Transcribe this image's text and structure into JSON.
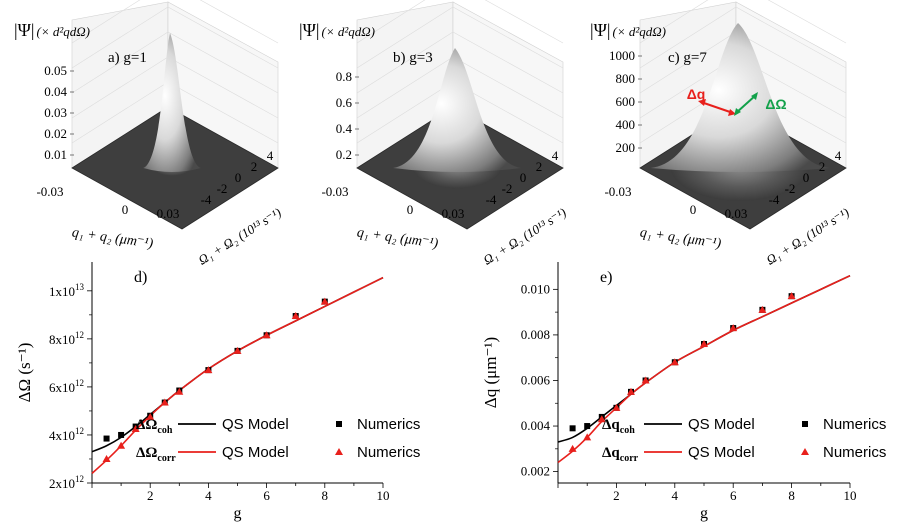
{
  "chart_data": [
    {
      "type": "surface3d",
      "panel_label": "a) g=1",
      "zlabel_main": "|Ψ|",
      "zlabel_unit": "(× d²qdΩ)",
      "zticks": [
        "0.01",
        "0.02",
        "0.03",
        "0.04",
        "0.05"
      ],
      "x_label": "q₁ + q₂ (μm⁻¹)",
      "x_ticks": [
        "-0.03",
        "0",
        "0.03"
      ],
      "y_label": "Ω₁ + Ω₂ (10¹³ s⁻¹)",
      "y_ticks": [
        "4",
        "2",
        "0",
        "-2",
        "-4"
      ],
      "peak": 0.055
    },
    {
      "type": "surface3d",
      "panel_label": "b) g=3",
      "zlabel_main": "|Ψ|",
      "zlabel_unit": "(× d²qdΩ)",
      "zticks": [
        "0.2",
        "0.4",
        "0.6",
        "0.8"
      ],
      "x_label": "q₁ + q₂ (μm⁻¹)",
      "x_ticks": [
        "-0.03",
        "0",
        "0.03"
      ],
      "y_label": "Ω₁ + Ω₂ (10¹³ s⁻¹)",
      "y_ticks": [
        "4",
        "2",
        "0",
        "-2",
        "-4"
      ],
      "peak": 0.88
    },
    {
      "type": "surface3d",
      "panel_label": "c) g=7",
      "zlabel_main": "|Ψ|",
      "zlabel_unit": "(× d²qdΩ)",
      "zticks": [
        "200",
        "400",
        "600",
        "800",
        "1000"
      ],
      "x_label": "q₁ + q₂ (μm⁻¹)",
      "x_ticks": [
        "-0.03",
        "0",
        "0.03"
      ],
      "y_label": "Ω₁ + Ω₂ (10¹³ s⁻¹)",
      "y_ticks": [
        "4",
        "2",
        "0",
        "-2",
        "-4"
      ],
      "peak": 1020,
      "annotations": {
        "dq": "Δq",
        "dOmega": "ΔΩ"
      }
    },
    {
      "type": "line",
      "panel_label": "d)",
      "ylabel": "ΔΩ (s⁻¹)",
      "xlabel": "g",
      "xlim": [
        0,
        10
      ],
      "ylim": [
        2000000000000.0,
        11200000000000.0
      ],
      "xticks": [
        2,
        4,
        6,
        8,
        10
      ],
      "yticks": [
        {
          "value": 2000000000000.0,
          "mant": "2x10",
          "exp": "12"
        },
        {
          "value": 4000000000000.0,
          "mant": "4x10",
          "exp": "12"
        },
        {
          "value": 6000000000000.0,
          "mant": "6x10",
          "exp": "12"
        },
        {
          "value": 8000000000000.0,
          "mant": "8x10",
          "exp": "12"
        },
        {
          "value": 10000000000000.0,
          "mant": "1x10",
          "exp": "13"
        }
      ],
      "series": [
        {
          "name": "ΔΩ coh QS Model",
          "kind": "line",
          "color": "#000000",
          "x": [
            0,
            0.5,
            1,
            1.5,
            2,
            2.5,
            3,
            4,
            5,
            6,
            7,
            8,
            9,
            10
          ],
          "y": [
            3300000000000.0,
            3550000000000.0,
            3900000000000.0,
            4350000000000.0,
            4850000000000.0,
            5350000000000.0,
            5850000000000.0,
            6750000000000.0,
            7500000000000.0,
            8150000000000.0,
            8750000000000.0,
            9350000000000.0,
            9950000000000.0,
            10550000000000.0
          ]
        },
        {
          "name": "ΔΩ corr QS Model",
          "kind": "line",
          "color": "#e8201c",
          "x": [
            0,
            0.5,
            1,
            1.5,
            2,
            2.5,
            3,
            4,
            5,
            6,
            7,
            8,
            9,
            10
          ],
          "y": [
            2400000000000.0,
            2950000000000.0,
            3550000000000.0,
            4200000000000.0,
            4800000000000.0,
            5350000000000.0,
            5850000000000.0,
            6750000000000.0,
            7500000000000.0,
            8150000000000.0,
            8750000000000.0,
            9350000000000.0,
            9950000000000.0,
            10550000000000.0
          ]
        },
        {
          "name": "ΔΩ coh Numerics",
          "kind": "square",
          "color": "#000000",
          "x": [
            0.5,
            1,
            1.5,
            2,
            2.5,
            3,
            4,
            5,
            6,
            7,
            8
          ],
          "y": [
            3850000000000.0,
            4000000000000.0,
            4350000000000.0,
            4800000000000.0,
            5350000000000.0,
            5850000000000.0,
            6700000000000.0,
            7500000000000.0,
            8150000000000.0,
            8950000000000.0,
            9550000000000.0
          ]
        },
        {
          "name": "ΔΩ corr Numerics",
          "kind": "triangle",
          "color": "#e8201c",
          "x": [
            0.5,
            1,
            1.5,
            2,
            2.5,
            3,
            4,
            5,
            6,
            7,
            8
          ],
          "y": [
            3000000000000.0,
            3550000000000.0,
            4250000000000.0,
            4750000000000.0,
            5350000000000.0,
            5800000000000.0,
            6700000000000.0,
            7500000000000.0,
            8150000000000.0,
            8950000000000.0,
            9550000000000.0
          ]
        }
      ],
      "legend": {
        "rows": [
          {
            "sym_main": "ΔΩ",
            "sym_sub": "coh",
            "line_color": "#000000",
            "model": "QS Model",
            "marker": "square",
            "marker_color": "#000000",
            "numerics": "Numerics"
          },
          {
            "sym_main": "ΔΩ",
            "sym_sub": "corr",
            "line_color": "#e8201c",
            "model": "QS Model",
            "marker": "triangle",
            "marker_color": "#e8201c",
            "numerics": "Numerics"
          }
        ]
      }
    },
    {
      "type": "line",
      "panel_label": "e)",
      "ylabel": "Δq (μm⁻¹)",
      "xlabel": "g",
      "xlim": [
        0,
        10
      ],
      "ylim": [
        0.0015,
        0.0112
      ],
      "xticks": [
        2,
        4,
        6,
        8,
        10
      ],
      "yticks": [
        {
          "value": 0.002,
          "label": "0.002"
        },
        {
          "value": 0.004,
          "label": "0.004"
        },
        {
          "value": 0.006,
          "label": "0.006"
        },
        {
          "value": 0.008,
          "label": "0.008"
        },
        {
          "value": 0.01,
          "label": "0.010"
        }
      ],
      "series": [
        {
          "name": "Δq coh QS Model",
          "kind": "line",
          "color": "#000000",
          "x": [
            0,
            0.5,
            1,
            1.5,
            2,
            2.5,
            3,
            4,
            5,
            6,
            7,
            8,
            9,
            10
          ],
          "y": [
            0.0033,
            0.0035,
            0.0039,
            0.0044,
            0.0049,
            0.0054,
            0.0059,
            0.0068,
            0.0075,
            0.0082,
            0.0088,
            0.0094,
            0.01,
            0.0106
          ]
        },
        {
          "name": "Δq corr QS Model",
          "kind": "line",
          "color": "#e8201c",
          "x": [
            0,
            0.5,
            1,
            1.5,
            2,
            2.5,
            3,
            4,
            5,
            6,
            7,
            8,
            9,
            10
          ],
          "y": [
            0.0024,
            0.0029,
            0.0035,
            0.0042,
            0.0048,
            0.0054,
            0.0059,
            0.0068,
            0.0075,
            0.0082,
            0.0088,
            0.0094,
            0.01,
            0.0106
          ]
        },
        {
          "name": "Δq coh Numerics",
          "kind": "square",
          "color": "#000000",
          "x": [
            0.5,
            1,
            1.5,
            2,
            2.5,
            3,
            4,
            5,
            6,
            7,
            8
          ],
          "y": [
            0.0039,
            0.004,
            0.0044,
            0.0048,
            0.0055,
            0.006,
            0.0068,
            0.0076,
            0.0083,
            0.0091,
            0.0097
          ]
        },
        {
          "name": "Δq corr Numerics",
          "kind": "triangle",
          "color": "#e8201c",
          "x": [
            0.5,
            1,
            1.5,
            2,
            2.5,
            3,
            4,
            5,
            6,
            7,
            8
          ],
          "y": [
            0.003,
            0.0035,
            0.0043,
            0.0048,
            0.0055,
            0.006,
            0.0068,
            0.0076,
            0.0083,
            0.0091,
            0.0097
          ]
        }
      ],
      "legend": {
        "rows": [
          {
            "sym_main": "Δq",
            "sym_sub": "coh",
            "line_color": "#000000",
            "model": "QS Model",
            "marker": "square",
            "marker_color": "#000000",
            "numerics": "Numerics"
          },
          {
            "sym_main": "Δq",
            "sym_sub": "corr",
            "line_color": "#e8201c",
            "model": "QS Model",
            "marker": "triangle",
            "marker_color": "#e8201c",
            "numerics": "Numerics"
          }
        ]
      }
    }
  ]
}
